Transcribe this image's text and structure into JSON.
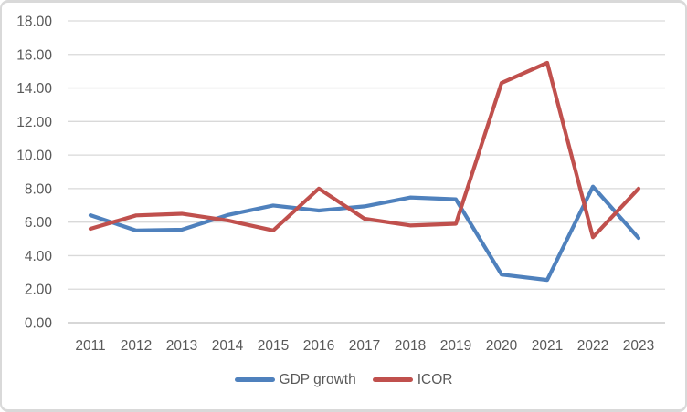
{
  "chart_data": {
    "type": "line",
    "title": "",
    "categories": [
      "2011",
      "2012",
      "2013",
      "2014",
      "2015",
      "2016",
      "2017",
      "2018",
      "2019",
      "2020",
      "2021",
      "2022",
      "2023"
    ],
    "series": [
      {
        "name": "GDP growth",
        "color": "#4F81BD",
        "values": [
          6.41,
          5.5,
          5.55,
          6.42,
          6.99,
          6.69,
          6.94,
          7.47,
          7.36,
          2.87,
          2.55,
          8.12,
          5.05
        ]
      },
      {
        "name": "ICOR",
        "color": "#C0504D",
        "values": [
          5.6,
          6.4,
          6.5,
          6.1,
          5.5,
          8.0,
          6.2,
          5.8,
          5.9,
          14.3,
          15.5,
          5.1,
          8.0
        ]
      }
    ],
    "xlabel": "",
    "ylabel": "",
    "ylim": [
      0,
      18
    ],
    "ytick_step": 2,
    "ytick_labels": [
      "0.00",
      "2.00",
      "4.00",
      "6.00",
      "8.00",
      "10.00",
      "12.00",
      "14.00",
      "16.00",
      "18.00"
    ],
    "grid": true,
    "legend_position": "bottom"
  },
  "colors": {
    "gridline": "#D9D9D9",
    "axis_line": "#BFBFBF",
    "label_text": "#595959",
    "frame_border": "#D9D9D9",
    "background": "#FFFFFF"
  }
}
